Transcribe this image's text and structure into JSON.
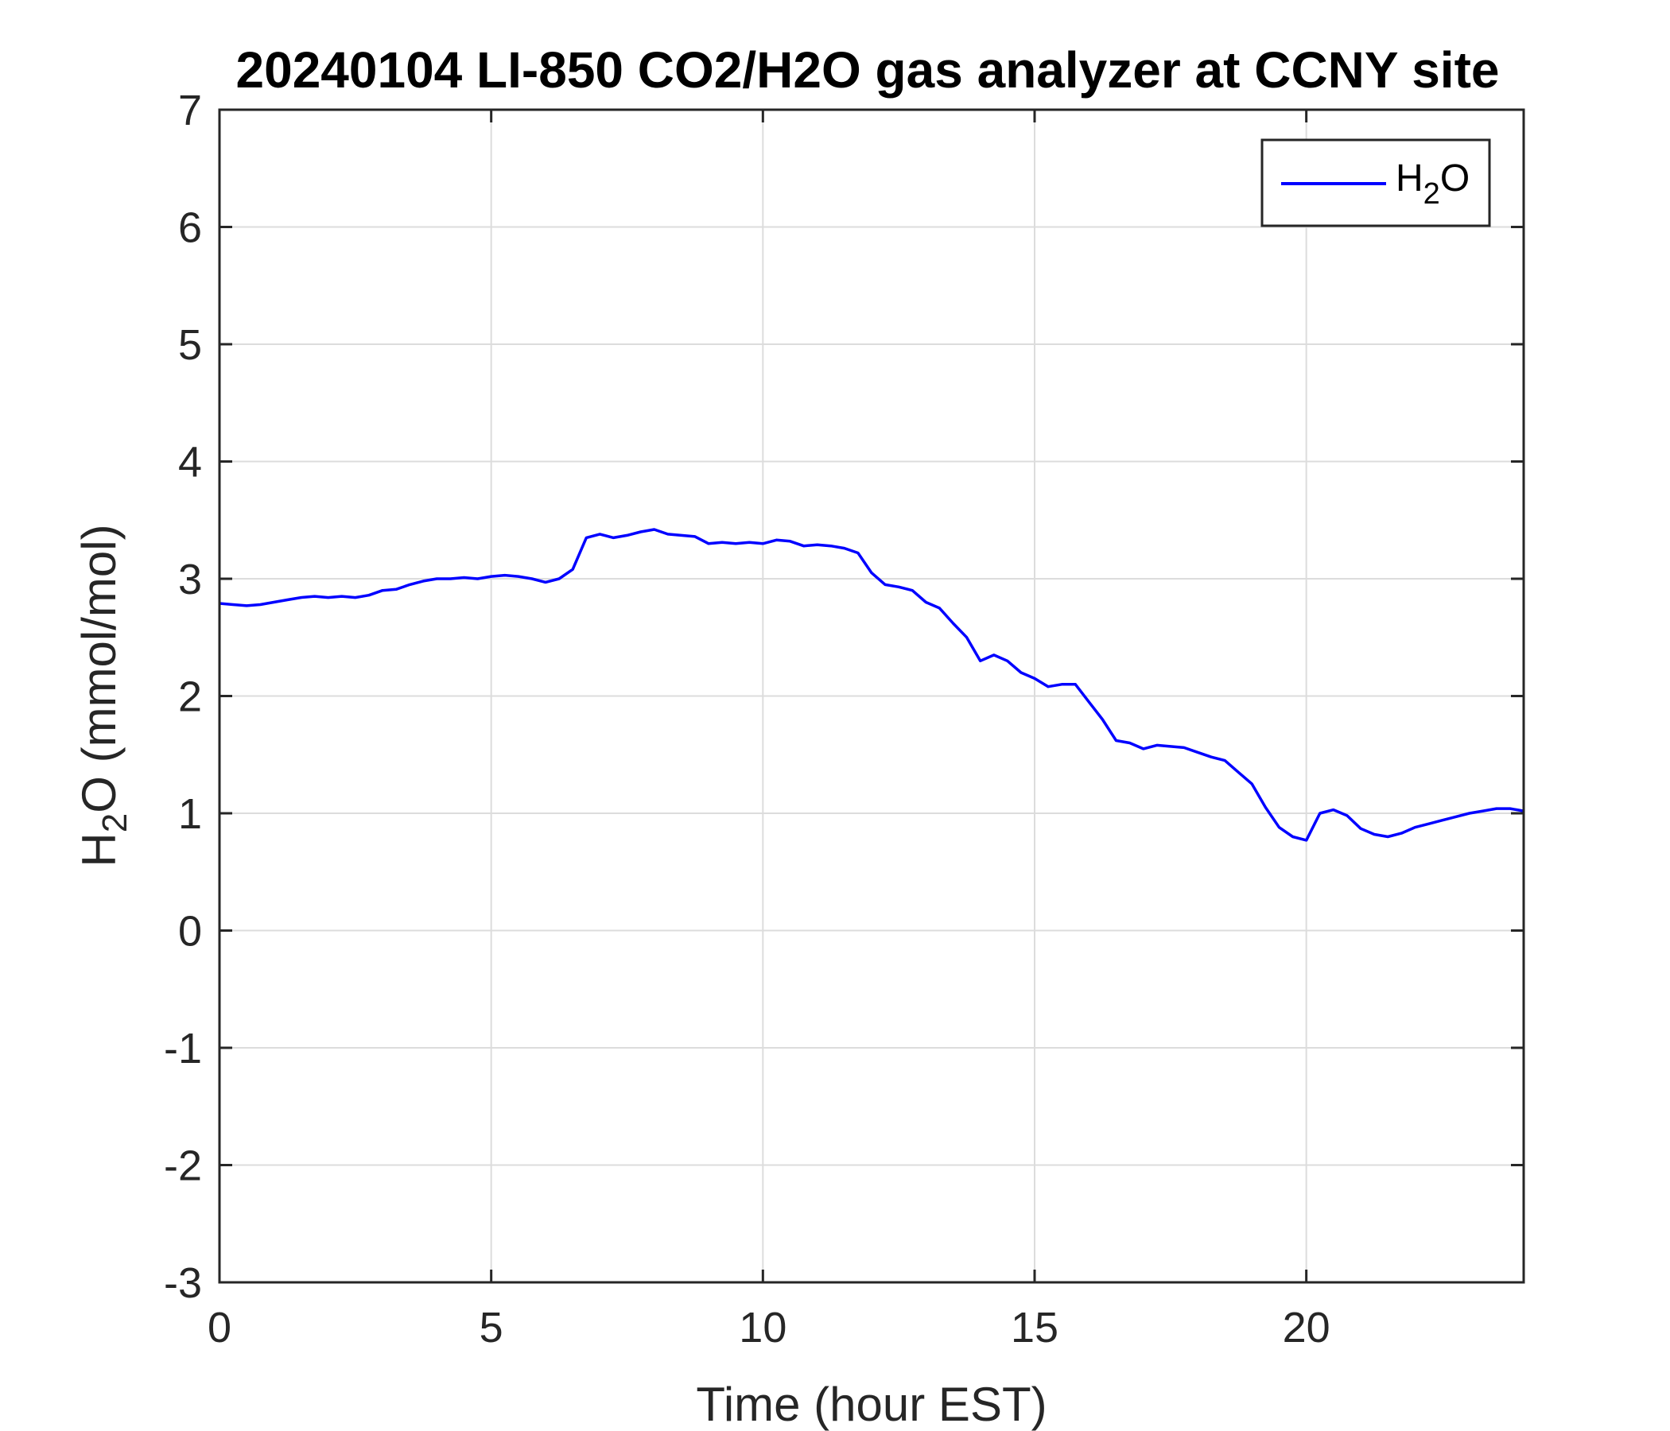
{
  "chart_data": {
    "type": "line",
    "title": "20240104 LI-850 CO2/H2O gas analyzer at CCNY site",
    "xlabel": "Time (hour EST)",
    "ylabel": {
      "main": "H",
      "sub": "2",
      "rest": "O (mmol/mol)"
    },
    "xlim": [
      0,
      24
    ],
    "ylim": [
      -3,
      7
    ],
    "xticks": [
      0,
      5,
      10,
      15,
      20
    ],
    "xtick_labels": [
      "0",
      "5",
      "10",
      "15",
      "20"
    ],
    "yticks": [
      -3,
      -2,
      -1,
      0,
      1,
      2,
      3,
      4,
      5,
      6,
      7
    ],
    "ytick_labels": [
      "-3",
      "-2",
      "-1",
      "0",
      "1",
      "2",
      "3",
      "4",
      "5",
      "6",
      "7"
    ],
    "grid": true,
    "legend_position": "top-right",
    "series": [
      {
        "name": {
          "main": "H",
          "sub": "2",
          "rest": "O"
        },
        "color": "#0000ff",
        "x": [
          0,
          0.25,
          0.5,
          0.75,
          1.0,
          1.25,
          1.5,
          1.75,
          2.0,
          2.25,
          2.5,
          2.75,
          3.0,
          3.25,
          3.5,
          3.75,
          4.0,
          4.25,
          4.5,
          4.75,
          5.0,
          5.25,
          5.5,
          5.75,
          6.0,
          6.25,
          6.5,
          6.75,
          7.0,
          7.25,
          7.5,
          7.75,
          8.0,
          8.25,
          8.5,
          8.75,
          9.0,
          9.25,
          9.5,
          9.75,
          10.0,
          10.25,
          10.5,
          10.75,
          11.0,
          11.25,
          11.5,
          11.75,
          12.0,
          12.25,
          12.5,
          12.75,
          13.0,
          13.25,
          13.5,
          13.75,
          14.0,
          14.25,
          14.5,
          14.75,
          15.0,
          15.25,
          15.5,
          15.75,
          16.0,
          16.25,
          16.5,
          16.75,
          17.0,
          17.25,
          17.5,
          17.75,
          18.0,
          18.25,
          18.5,
          18.75,
          19.0,
          19.25,
          19.5,
          19.75,
          20.0,
          20.25,
          20.5,
          20.75,
          21.0,
          21.25,
          21.5,
          21.75,
          22.0,
          22.25,
          22.5,
          22.75,
          23.0,
          23.25,
          23.5,
          23.75,
          24.0
        ],
        "y": [
          2.79,
          2.78,
          2.77,
          2.78,
          2.8,
          2.82,
          2.84,
          2.85,
          2.84,
          2.85,
          2.84,
          2.86,
          2.9,
          2.91,
          2.95,
          2.98,
          3.0,
          3.0,
          3.01,
          3.0,
          3.02,
          3.03,
          3.02,
          3.0,
          2.97,
          3.0,
          3.08,
          3.35,
          3.38,
          3.35,
          3.37,
          3.4,
          3.42,
          3.38,
          3.37,
          3.36,
          3.3,
          3.31,
          3.3,
          3.31,
          3.3,
          3.33,
          3.32,
          3.28,
          3.29,
          3.28,
          3.26,
          3.22,
          3.05,
          2.95,
          2.93,
          2.9,
          2.8,
          2.75,
          2.62,
          2.5,
          2.3,
          2.35,
          2.3,
          2.2,
          2.15,
          2.08,
          2.1,
          2.1,
          1.95,
          1.8,
          1.62,
          1.6,
          1.55,
          1.58,
          1.57,
          1.56,
          1.52,
          1.48,
          1.45,
          1.35,
          1.25,
          1.05,
          0.88,
          0.8,
          0.77,
          1.0,
          1.03,
          0.98,
          0.87,
          0.82,
          0.8,
          0.83,
          0.88,
          0.91,
          0.94,
          0.97,
          1.0,
          1.02,
          1.04,
          1.04,
          1.02
        ]
      }
    ]
  }
}
